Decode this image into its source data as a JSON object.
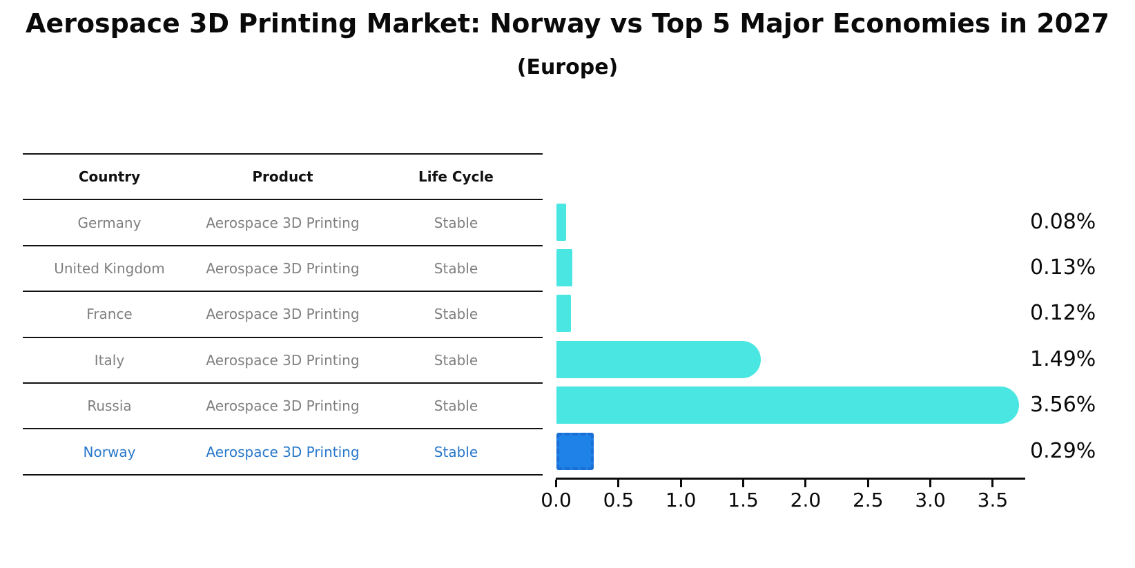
{
  "header": {
    "title": "Aerospace 3D Printing Market: Norway vs Top 5 Major Economies in 2027",
    "subtitle": "(Europe)"
  },
  "table": {
    "headers": [
      "Country",
      "Product",
      "Life Cycle"
    ],
    "rows": [
      {
        "country": "Germany",
        "product": "Aerospace 3D Printing",
        "life_cycle": "Stable",
        "highlighted": false
      },
      {
        "country": "United Kingdom",
        "product": "Aerospace 3D Printing",
        "life_cycle": "Stable",
        "highlighted": false
      },
      {
        "country": "France",
        "product": "Aerospace 3D Printing",
        "life_cycle": "Stable",
        "highlighted": false
      },
      {
        "country": "Italy",
        "product": "Aerospace 3D Printing",
        "life_cycle": "Stable",
        "highlighted": false
      },
      {
        "country": "Russia",
        "product": "Aerospace 3D Printing",
        "life_cycle": "Stable",
        "highlighted": false
      },
      {
        "country": "Norway",
        "product": "Aerospace 3D Printing",
        "life_cycle": "Stable",
        "highlighted": true
      }
    ]
  },
  "chart_data": {
    "type": "bar",
    "orientation": "horizontal",
    "title": "Aerospace 3D Printing Market: Norway vs Top 5 Major Economies in 2027",
    "subtitle": "(Europe)",
    "categories": [
      "Germany",
      "United Kingdom",
      "France",
      "Italy",
      "Russia",
      "Norway"
    ],
    "values": [
      0.08,
      0.13,
      0.12,
      1.49,
      3.56,
      0.29
    ],
    "value_labels": [
      "0.08%",
      "0.13%",
      "0.12%",
      "1.49%",
      "3.56%",
      "0.29%"
    ],
    "x_ticks": [
      0.0,
      0.5,
      1.0,
      1.5,
      2.0,
      2.5,
      3.0,
      3.5
    ],
    "x_tick_labels": [
      "0.0",
      "0.5",
      "1.0",
      "1.5",
      "2.0",
      "2.5",
      "3.0",
      "3.5"
    ],
    "xlim": [
      0,
      3.75
    ],
    "xlabel": "",
    "ylabel": "",
    "grid": false,
    "legend": false,
    "highlight_category": "Norway"
  },
  "colors": {
    "bar_cyan": "#4ae6e2",
    "bar_blue": "#1e82e8",
    "bar_blue_border": "#1a6fd4",
    "highlight_text": "#2878cb",
    "row_text": "#7f7f7f",
    "heading_text": "#0a0a0a"
  }
}
